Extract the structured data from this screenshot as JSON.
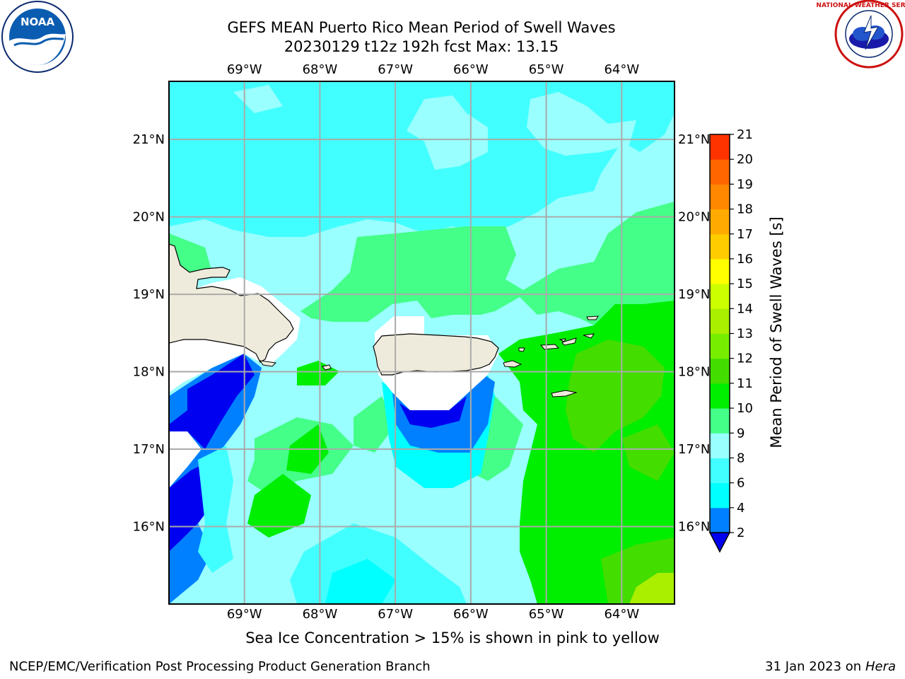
{
  "title_line1": "GEFS MEAN Puerto Rico Mean Period of Swell Waves",
  "title_line2": "20230129 t12z 192h fcst   Max: 13.15",
  "logos": {
    "left": "noaa-logo",
    "left_text": "NOAA",
    "right": "nws-logo",
    "right_text": "NATIONAL WEATHER SERVICE"
  },
  "map": {
    "lon_range": [
      -70.0,
      -63.3
    ],
    "lat_range": [
      15.0,
      21.75
    ],
    "lon_ticks": [
      "69°W",
      "68°W",
      "67°W",
      "66°W",
      "65°W",
      "64°W"
    ],
    "lat_ticks": [
      "21°N",
      "20°N",
      "19°N",
      "18°N",
      "17°N",
      "16°N"
    ],
    "grid": true,
    "land_color": "#efebdc"
  },
  "colorbar": {
    "label": "Mean Period of Swell Waves [s]",
    "ticks": [
      "2",
      "4",
      "6",
      "8",
      "9",
      "10",
      "11",
      "12",
      "13",
      "14",
      "15",
      "16",
      "17",
      "18",
      "19",
      "20",
      "21"
    ],
    "colors": [
      "#0000f0",
      "#0080ff",
      "#00ffff",
      "#42ffff",
      "#99ffff",
      "#44ff88",
      "#00ee00",
      "#44dd00",
      "#77ee00",
      "#aaee00",
      "#ccff00",
      "#ffff00",
      "#ffcc00",
      "#ffaa00",
      "#ff8800",
      "#ff6600",
      "#ff3300",
      "#ff0000"
    ],
    "extend": "min"
  },
  "note": "Sea Ice Concentration > 15% is shown in pink to yellow",
  "footer_left": "NCEP/EMC/Verification Post Processing Product Generation Branch",
  "footer_right_prefix": "31 Jan 2023 on ",
  "footer_right_host": "Hera"
}
